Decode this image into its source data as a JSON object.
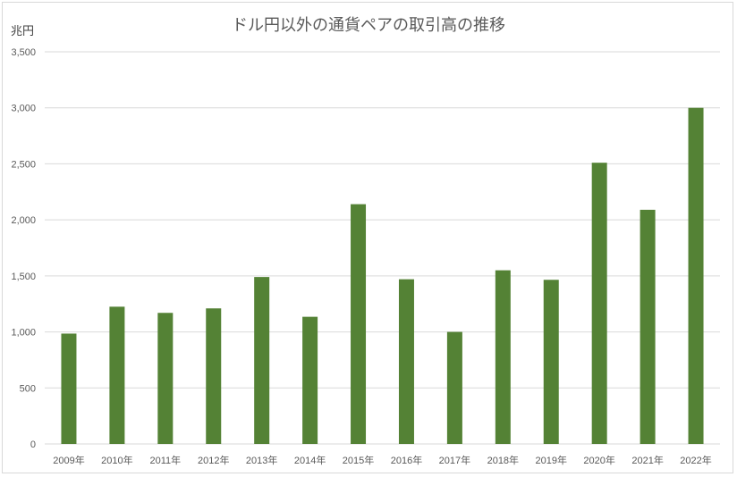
{
  "chart_data": {
    "type": "bar",
    "title": "ドル円以外の通貨ペアの取引高の推移",
    "ylabel": "兆円",
    "xlabel": "",
    "categories": [
      "2009年",
      "2010年",
      "2011年",
      "2012年",
      "2013年",
      "2014年",
      "2015年",
      "2016年",
      "2017年",
      "2018年",
      "2019年",
      "2020年",
      "2021年",
      "2022年"
    ],
    "series": [
      {
        "values": [
          985,
          1225,
          1170,
          1210,
          1490,
          1135,
          2140,
          1470,
          1000,
          1550,
          1465,
          2510,
          2090,
          3000
        ]
      }
    ],
    "ylim": [
      0,
      3500
    ],
    "yticks": [
      "0",
      "500",
      "1,000",
      "1,500",
      "2,000",
      "2,500",
      "3,000",
      "3,500"
    ],
    "ytick_values": [
      0,
      500,
      1000,
      1500,
      2000,
      2500,
      3000,
      3500
    ],
    "grid": true,
    "legend": "none",
    "colors": {
      "bar": "#548235",
      "grid": "#d9d9d9",
      "text": "#595959"
    }
  }
}
